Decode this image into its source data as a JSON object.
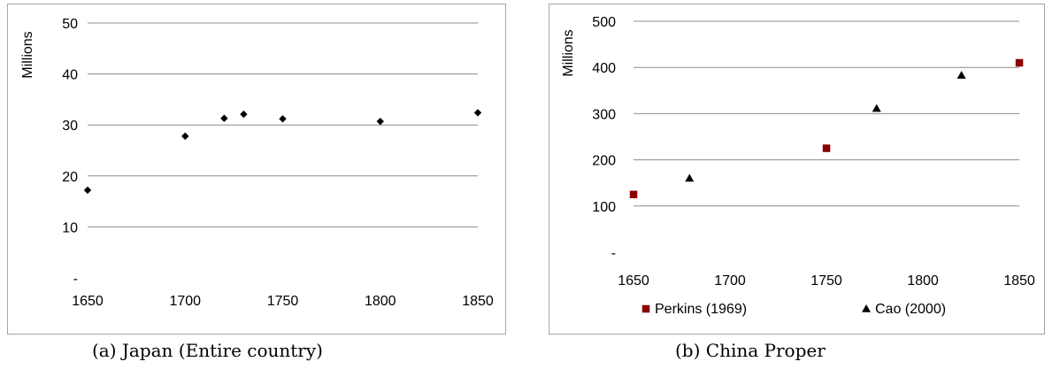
{
  "chart_data": [
    {
      "type": "scatter",
      "ylabel": "Millions",
      "xlim": [
        1650,
        1850
      ],
      "ylim": [
        0,
        50
      ],
      "x_ticks": [
        "1650",
        "1700",
        "1750",
        "1800",
        "1850"
      ],
      "y_ticks": [
        "-",
        "10",
        "20",
        "30",
        "40",
        "50"
      ],
      "grid": "horizontal",
      "series": [
        {
          "marker": "diamond",
          "color": "#000000",
          "points": [
            [
              1650,
              17.2
            ],
            [
              1700,
              27.8
            ],
            [
              1720,
              31.3
            ],
            [
              1730,
              32.1
            ],
            [
              1750,
              31.2
            ],
            [
              1800,
              30.7
            ],
            [
              1850,
              32.4
            ]
          ]
        }
      ],
      "caption": "(a) Japan (Entire country)"
    },
    {
      "type": "scatter",
      "ylabel": "Millions",
      "xlim": [
        1650,
        1850
      ],
      "ylim": [
        0,
        500
      ],
      "x_ticks": [
        "1650",
        "1700",
        "1750",
        "1800",
        "1850"
      ],
      "y_ticks": [
        "-",
        "100",
        "200",
        "300",
        "400",
        "500"
      ],
      "grid": "horizontal",
      "legend_position": "bottom",
      "series": [
        {
          "name": "Perkins (1969)",
          "marker": "square",
          "color": "#8b0000",
          "points": [
            [
              1650,
              125
            ],
            [
              1750,
              225
            ],
            [
              1850,
              410
            ]
          ]
        },
        {
          "name": "Cao (2000)",
          "marker": "triangle",
          "color": "#000000",
          "points": [
            [
              1679,
              160
            ],
            [
              1776,
              311
            ],
            [
              1820,
              383
            ]
          ]
        }
      ],
      "caption": "(b) China Proper"
    }
  ]
}
